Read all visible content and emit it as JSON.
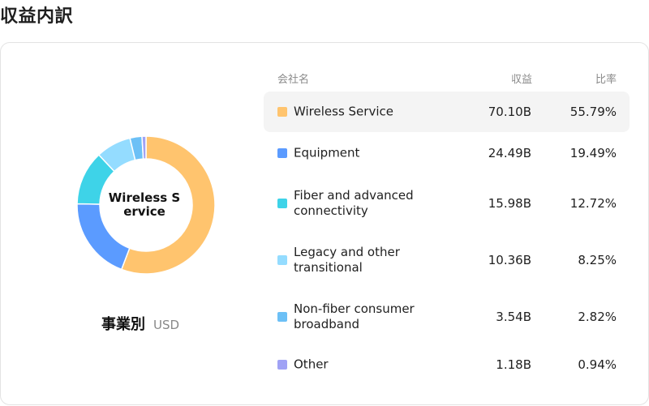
{
  "page": {
    "title": "収益内訳"
  },
  "donut": {
    "center_label": "Wireless Service"
  },
  "caption": {
    "main": "事業別",
    "unit": "USD"
  },
  "table": {
    "headers": {
      "name": "会社名",
      "revenue": "収益",
      "ratio": "比率"
    },
    "rows": [
      {
        "name": "Wireless Service",
        "revenue": "70.10B",
        "ratio": "55.79%",
        "color": "#FFC46E",
        "share": 55.79,
        "highlighted": true
      },
      {
        "name": "Equipment",
        "revenue": "24.49B",
        "ratio": "19.49%",
        "color": "#5B9BFF",
        "share": 19.49,
        "highlighted": false
      },
      {
        "name": "Fiber and advanced connectivity",
        "revenue": "15.98B",
        "ratio": "12.72%",
        "color": "#3ED3E8",
        "share": 12.72,
        "highlighted": false
      },
      {
        "name": "Legacy and other transitional",
        "revenue": "10.36B",
        "ratio": "8.25%",
        "color": "#94DCFF",
        "share": 8.25,
        "highlighted": false
      },
      {
        "name": "Non-fiber consumer broadband",
        "revenue": "3.54B",
        "ratio": "2.82%",
        "color": "#6CC0F6",
        "share": 2.82,
        "highlighted": false
      },
      {
        "name": "Other",
        "revenue": "1.18B",
        "ratio": "0.94%",
        "color": "#A0A2F5",
        "share": 0.94,
        "highlighted": false
      }
    ]
  }
}
